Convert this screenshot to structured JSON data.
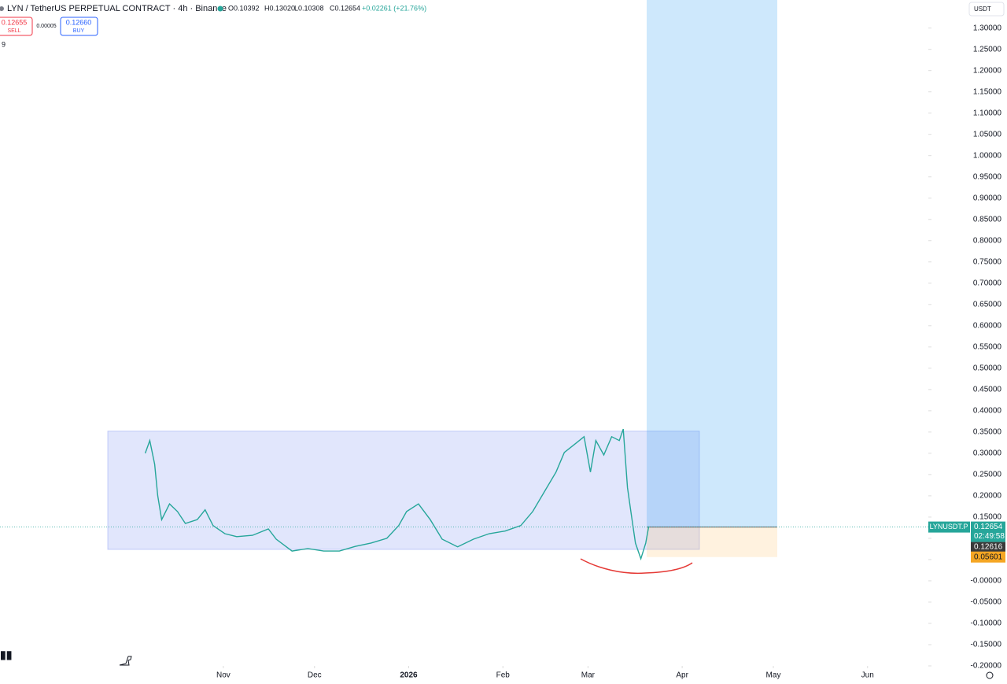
{
  "header": {
    "title": "LYN / TetherUS PERPETUAL CONTRACT · 4h · Binance",
    "open": "O0.10392",
    "high": "H0.13020",
    "low": "L0.10308",
    "close": "C0.12654",
    "change": "+0.02261 (+21.76%)",
    "sell_price": "0.12655",
    "sell": "SELL",
    "spread": "0.00005",
    "buy_price": "0.12660",
    "buy": "BUY",
    "indicators": "9",
    "currency": "USDT"
  },
  "chart_data": {
    "type": "line",
    "color": "#26a69a",
    "x": [
      5.3,
      6.8,
      8.4,
      9.4,
      10.7,
      13.3,
      15.9,
      18.5,
      22.4,
      25.0,
      27.6,
      31.5,
      35.4,
      40.6,
      45.8,
      48.4,
      53.6,
      58.8,
      64.0,
      69.2,
      74.4,
      79.6,
      84.8,
      88.7,
      91.3,
      95.2,
      99.1,
      103.0,
      108.1,
      113.3,
      118.5,
      123.7,
      128.9,
      132.8,
      136.6,
      140.5,
      143.2,
      147.1,
      149.7,
      151.8,
      153.6,
      156.2,
      158.8,
      161.3,
      162.6,
      164.0,
      165.3,
      166.6,
      168.4,
      170.0,
      171.0
    ],
    "values": [
      0.3,
      0.33,
      0.274,
      0.2,
      0.144,
      0.181,
      0.163,
      0.135,
      0.144,
      0.167,
      0.13,
      0.111,
      0.104,
      0.107,
      0.122,
      0.098,
      0.07,
      0.076,
      0.07,
      0.07,
      0.081,
      0.089,
      0.1,
      0.13,
      0.163,
      0.181,
      0.144,
      0.098,
      0.08,
      0.098,
      0.111,
      0.117,
      0.13,
      0.163,
      0.209,
      0.256,
      0.302,
      0.324,
      0.339,
      0.256,
      0.33,
      0.296,
      0.339,
      0.33,
      0.357,
      0.219,
      0.154,
      0.089,
      0.052,
      0.089,
      0.128
    ],
    "xlim": [
      -42.5,
      263
    ],
    "xticks": [
      {
        "value": 31,
        "label": "Nov"
      },
      {
        "value": 61,
        "label": "Dec"
      },
      {
        "value": 92,
        "label": "2026"
      },
      {
        "value": 123,
        "label": "Feb"
      },
      {
        "value": 151,
        "label": "Mar"
      },
      {
        "value": 182,
        "label": "Apr"
      },
      {
        "value": 212,
        "label": "May"
      },
      {
        "value": 243,
        "label": "Jun"
      }
    ],
    "ylim": [
      -0.2,
      1.366
    ],
    "yticks": [
      {
        "value": -0.2,
        "label": "-0.20000"
      },
      {
        "value": -0.15,
        "label": "-0.15000"
      },
      {
        "value": -0.1,
        "label": "-0.10000"
      },
      {
        "value": -0.05,
        "label": "-0.05000"
      },
      {
        "value": 0,
        "label": "-0.00000"
      },
      {
        "value": 0.05,
        "label": "0.05000"
      },
      {
        "value": 0.1,
        "label": "0.10000"
      },
      {
        "value": 0.15,
        "label": "0.15000"
      },
      {
        "value": 0.2,
        "label": "0.20000"
      },
      {
        "value": 0.25,
        "label": "0.25000"
      },
      {
        "value": 0.3,
        "label": "0.30000"
      },
      {
        "value": 0.35,
        "label": "0.35000"
      },
      {
        "value": 0.4,
        "label": "0.40000"
      },
      {
        "value": 0.45,
        "label": "0.45000"
      },
      {
        "value": 0.5,
        "label": "0.50000"
      },
      {
        "value": 0.55,
        "label": "0.55000"
      },
      {
        "value": 0.6,
        "label": "0.60000"
      },
      {
        "value": 0.65,
        "label": "0.65000"
      },
      {
        "value": 0.7,
        "label": "0.70000"
      },
      {
        "value": 0.75,
        "label": "0.75000"
      },
      {
        "value": 0.8,
        "label": "0.80000"
      },
      {
        "value": 0.85,
        "label": "0.85000"
      },
      {
        "value": 0.9,
        "label": "0.90000"
      },
      {
        "value": 0.95,
        "label": "0.95000"
      },
      {
        "value": 1.0,
        "label": "1.00000"
      },
      {
        "value": 1.05,
        "label": "1.05000"
      },
      {
        "value": 1.1,
        "label": "1.10000"
      },
      {
        "value": 1.15,
        "label": "1.15000"
      },
      {
        "value": 1.2,
        "label": "1.20000"
      },
      {
        "value": 1.25,
        "label": "1.25000"
      },
      {
        "value": 1.3,
        "label": "1.30000"
      }
    ],
    "range_box": {
      "top": 0.352,
      "bottom": 0.074
    },
    "symbol": "LYNUSDT.P",
    "last_price": 0.12654,
    "countdown": "02:49:58",
    "entry_price": 0.12616,
    "stop_price": 0.05601
  }
}
